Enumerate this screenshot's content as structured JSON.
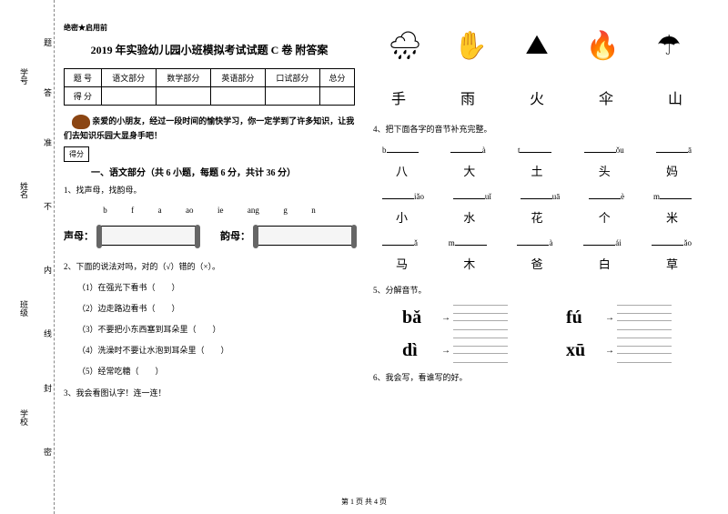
{
  "margin": {
    "labels": [
      "学号",
      "姓名",
      "班级",
      "学校"
    ],
    "chars": [
      "题",
      "答",
      "准",
      "不",
      "内",
      "线",
      "封",
      "密"
    ]
  },
  "secret": "绝密★启用前",
  "title": "2019 年实验幼儿园小班模拟考试试题 C 卷 附答案",
  "scoreTable": {
    "headers": [
      "题 号",
      "语文部分",
      "数学部分",
      "英语部分",
      "口试部分",
      "总分"
    ],
    "row2": "得 分"
  },
  "intro": {
    "text1": "亲爱的小朋友，经过一段时间的愉快学习，你一定学到了许多知识，让我们去知识乐园大显身手吧！",
    "scoreLabel": "得分"
  },
  "section1": {
    "title": "一、语文部分（共 6 小题，每题 6 分，共计 36 分）",
    "q1": "1、找声母，找韵母。",
    "letters": [
      "b",
      "f",
      "a",
      "ao",
      "ie",
      "ang",
      "g",
      "n"
    ],
    "shengmu": "声母：",
    "yunmu": "韵母：",
    "q2": "2、下面的说法对吗，对的（√）错的（×）。",
    "q2items": [
      "（1）在强光下看书（　　）",
      "（2）边走路边看书（　　）",
      "（3）不要把小东西塞到耳朵里（　　）",
      "（4）洗澡时不要让水泡到耳朵里（　　）",
      "（5）经常吃糖（　　）"
    ],
    "q3": "3、我会看图认字！连一连！"
  },
  "right": {
    "chars1": [
      "手",
      "雨",
      "火",
      "伞",
      "山"
    ],
    "q4": "4、把下面各字的音节补充完整。",
    "pinyinGroups": [
      {
        "pinyin": [
          "b___",
          "___à",
          "t___",
          "___ǒu",
          "___ā"
        ],
        "hanzi": [
          "八",
          "大",
          "土",
          "头",
          "妈"
        ]
      },
      {
        "pinyin": [
          "___iǎo",
          "___uǐ",
          "___uā",
          "___è",
          "m___"
        ],
        "hanzi": [
          "小",
          "水",
          "花",
          "个",
          "米"
        ]
      },
      {
        "pinyin": [
          "___ǎ",
          "m___",
          "___à",
          "___ái",
          "___ǎo"
        ],
        "hanzi": [
          "马",
          "木",
          "爸",
          "白",
          "草"
        ]
      }
    ],
    "q5": "5、分解音节。",
    "syllables": [
      [
        "bǎ",
        "fú"
      ],
      [
        "dì",
        "xū"
      ]
    ],
    "q6": "6、我会写，看谁写的好。"
  },
  "footer": "第 1 页 共 4 页"
}
